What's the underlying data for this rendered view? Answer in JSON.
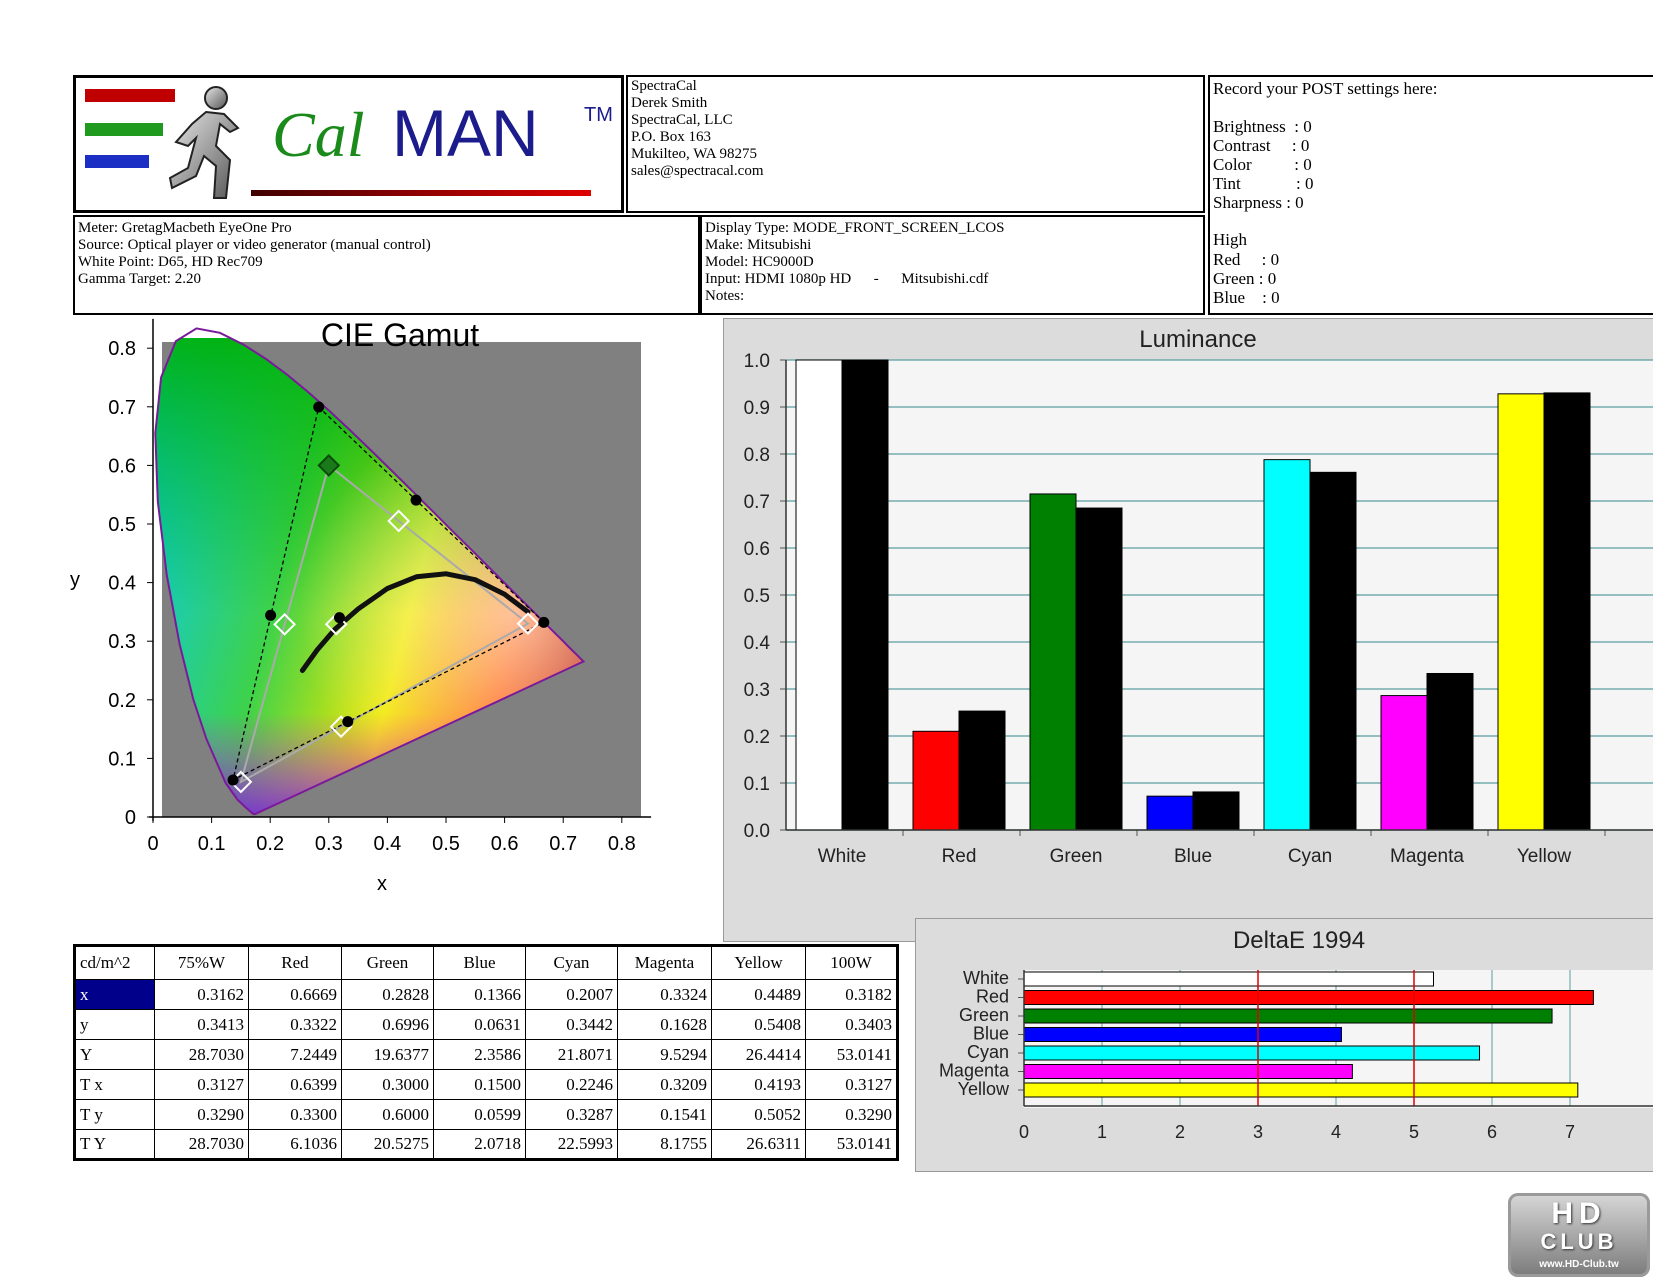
{
  "header": {
    "logo_text_cal": "Cal",
    "logo_text_man": "MAN",
    "logo_tm": "TM",
    "contact_lines": [
      "SpectraCal",
      "Derek Smith",
      "SpectraCal, LLC",
      "P.O. Box 163",
      "Mukilteo, WA 98275",
      "sales@spectracal.com"
    ],
    "meter_lines": [
      "Meter: GretagMacbeth EyeOne Pro",
      "Source: Optical player or video generator (manual control)",
      "White Point: D65, HD Rec709",
      "Gamma Target: 2.20"
    ],
    "display_lines": [
      "Display Type: MODE_FRONT_SCREEN_LCOS",
      "Make: Mitsubishi",
      "Model: HC9000D",
      "Input: HDMI 1080p HD      -      Mitsubishi.cdf",
      "Notes:"
    ],
    "post_title": "Record your POST settings here:",
    "post_lines": [
      "Brightness  : 0",
      "Contrast     : 0",
      "Color          : 0",
      "Tint             : 0",
      "Sharpness : 0"
    ],
    "high_title": "High",
    "high_lines": [
      "Red     : 0",
      "Green : 0",
      "Blue    : 0"
    ]
  },
  "chart_data": [
    {
      "type": "scatter",
      "title": "CIE Gamut",
      "xlabel": "x",
      "ylabel": "y",
      "xlim": [
        0,
        0.85
      ],
      "ylim": [
        0,
        0.85
      ],
      "x_ticks": [
        "0",
        "0.1",
        "0.2",
        "0.3",
        "0.4",
        "0.5",
        "0.6",
        "0.7",
        "0.8"
      ],
      "y_ticks": [
        "0",
        "0.1",
        "0.2",
        "0.3",
        "0.4",
        "0.5",
        "0.6",
        "0.7",
        "0.8"
      ],
      "series": [
        {
          "values": [
            {
              "x": 0.6669,
              "y": 0.3322
            },
            {
              "x": 0.2828,
              "y": 0.6996
            },
            {
              "x": 0.1366,
              "y": 0.0631
            },
            {
              "x": 0.2007,
              "y": 0.3442
            },
            {
              "x": 0.3324,
              "y": 0.1628
            },
            {
              "x": 0.4489,
              "y": 0.5408
            },
            {
              "x": 0.3182,
              "y": 0.3403
            }
          ]
        },
        {
          "values": [
            {
              "x": 0.6399,
              "y": 0.33
            },
            {
              "x": 0.3,
              "y": 0.6
            },
            {
              "x": 0.15,
              "y": 0.0599
            },
            {
              "x": 0.2246,
              "y": 0.3287
            },
            {
              "x": 0.3209,
              "y": 0.1541
            },
            {
              "x": 0.4193,
              "y": 0.5052
            },
            {
              "x": 0.3127,
              "y": 0.329
            }
          ]
        }
      ]
    },
    {
      "type": "bar",
      "title": "Luminance",
      "categories": [
        "White",
        "Red",
        "Green",
        "Blue",
        "Cyan",
        "Magenta",
        "Yellow"
      ],
      "ylim": [
        0,
        1.0
      ],
      "y_ticks": [
        "0.0",
        "0.1",
        "0.2",
        "0.3",
        "0.4",
        "0.5",
        "0.6",
        "0.7",
        "0.8",
        "0.9",
        "1.0"
      ],
      "series": [
        {
          "values": [
            1.0,
            0.21,
            0.715,
            0.072,
            0.788,
            0.286,
            0.928
          ]
        },
        {
          "values": [
            1.0,
            0.253,
            0.685,
            0.081,
            0.761,
            0.333,
            0.93
          ]
        }
      ],
      "bar_colors": [
        "#ffffff",
        "#ff0000",
        "#008000",
        "#0000ff",
        "#00ffff",
        "#ff00ff",
        "#ffff00"
      ],
      "measured_color": "#000000"
    },
    {
      "type": "bar",
      "title": "DeltaE 1994",
      "categories": [
        "White",
        "Red",
        "Green",
        "Blue",
        "Cyan",
        "Magenta",
        "Yellow"
      ],
      "values": [
        5.25,
        7.3,
        6.77,
        4.07,
        5.84,
        4.21,
        7.1
      ],
      "xlim": [
        0,
        7.2
      ],
      "x_ticks": [
        "0",
        "1",
        "2",
        "3",
        "4",
        "5",
        "6",
        "7"
      ],
      "thresholds": [
        3,
        5
      ],
      "bar_colors": [
        "#ffffff",
        "#ff0000",
        "#008000",
        "#0000ff",
        "#00ffff",
        "#ff00ff",
        "#ffff00"
      ]
    },
    {
      "type": "table",
      "corner": "cd/m^2",
      "columns": [
        "75%W",
        "Red",
        "Green",
        "Blue",
        "Cyan",
        "Magenta",
        "Yellow",
        "100W"
      ],
      "rows": [
        {
          "label": "x",
          "values": [
            "0.3162",
            "0.6669",
            "0.2828",
            "0.1366",
            "0.2007",
            "0.3324",
            "0.4489",
            "0.3182"
          ]
        },
        {
          "label": "y",
          "values": [
            "0.3413",
            "0.3322",
            "0.6996",
            "0.0631",
            "0.3442",
            "0.1628",
            "0.5408",
            "0.3403"
          ]
        },
        {
          "label": "Y",
          "values": [
            "28.7030",
            "7.2449",
            "19.6377",
            "2.3586",
            "21.8071",
            "9.5294",
            "26.4414",
            "53.0141"
          ]
        },
        {
          "label": "T x",
          "values": [
            "0.3127",
            "0.6399",
            "0.3000",
            "0.1500",
            "0.2246",
            "0.3209",
            "0.4193",
            "0.3127"
          ]
        },
        {
          "label": "T y",
          "values": [
            "0.3290",
            "0.3300",
            "0.6000",
            "0.0599",
            "0.3287",
            "0.1541",
            "0.5052",
            "0.3290"
          ]
        },
        {
          "label": "T Y",
          "values": [
            "28.7030",
            "6.1036",
            "20.5275",
            "2.0718",
            "22.5993",
            "8.1755",
            "26.6311",
            "53.0141"
          ]
        }
      ]
    }
  ],
  "watermark": {
    "line1": "HD",
    "line2": "CLUB",
    "url": "www.HD-Club.tw"
  }
}
